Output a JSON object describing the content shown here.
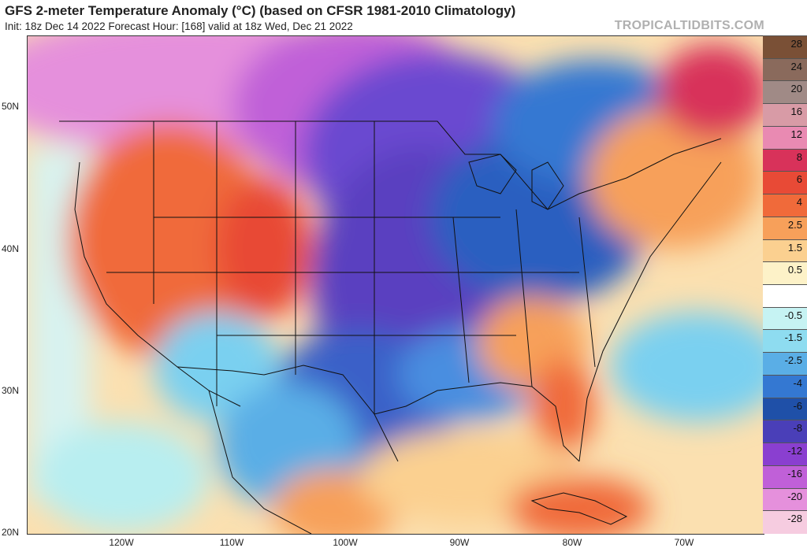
{
  "header": {
    "title": "GFS 2-meter Temperature Anomaly (°C) (based on CFSR 1981-2010 Climatology)",
    "subtitle": "Init: 18z Dec 14 2022   Forecast Hour: [168]   valid at 18z Wed, Dec 21 2022",
    "brand": "TROPICALTIDBITS.COM"
  },
  "axes": {
    "lat_labels": [
      "50N",
      "40N",
      "30N",
      "20N"
    ],
    "lon_labels": [
      "120W",
      "110W",
      "100W",
      "90W",
      "80W",
      "70W"
    ]
  },
  "colorbar": {
    "levels": [
      {
        "label": "28",
        "color": "#7a5036"
      },
      {
        "label": "24",
        "color": "#8a6a5c"
      },
      {
        "label": "20",
        "color": "#a08a86"
      },
      {
        "label": "16",
        "color": "#d89ba6"
      },
      {
        "label": "12",
        "color": "#e98ab2"
      },
      {
        "label": "8",
        "color": "#d8325a"
      },
      {
        "label": "6",
        "color": "#e84a36"
      },
      {
        "label": "4",
        "color": "#f06a3a"
      },
      {
        "label": "2.5",
        "color": "#f7a05a"
      },
      {
        "label": "1.5",
        "color": "#fbd090"
      },
      {
        "label": "0.5",
        "color": "#fdf2c8"
      },
      {
        "label": "",
        "color": "#ffffff"
      },
      {
        "label": "-0.5",
        "color": "#c6f3f3"
      },
      {
        "label": "-1.5",
        "color": "#8edcf0"
      },
      {
        "label": "-2.5",
        "color": "#5aaee6"
      },
      {
        "label": "-4",
        "color": "#3478d2"
      },
      {
        "label": "-6",
        "color": "#1f50a8"
      },
      {
        "label": "-8",
        "color": "#4a3fb8"
      },
      {
        "label": "-12",
        "color": "#8a3fd0"
      },
      {
        "label": "-16",
        "color": "#c060d8"
      },
      {
        "label": "-20",
        "color": "#e590dc"
      },
      {
        "label": "-28",
        "color": "#f6cce0"
      }
    ]
  }
}
